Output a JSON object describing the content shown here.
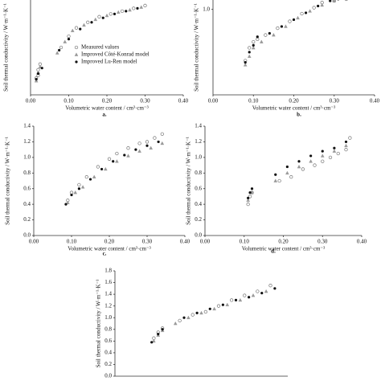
{
  "chart_data": [
    {
      "type": "scatter",
      "caption": "a.",
      "x_label": "Volumetric water content / cm³·cm⁻³",
      "y_label": "Soil thermal conductivity / W·m⁻¹·K⁻¹",
      "xlim": [
        0,
        0.4
      ],
      "xticks": [
        {
          "value": 0,
          "label": "0.00"
        },
        {
          "value": 0.1,
          "label": "0.10"
        },
        {
          "value": 0.2,
          "label": "0.20"
        },
        {
          "value": 0.3,
          "label": "0.30"
        },
        {
          "value": 0.4,
          "label": "0.40"
        }
      ],
      "ylim": [
        0,
        1.7
      ],
      "legend": "center",
      "series": [
        {
          "name": "Measured values",
          "color": "#777777",
          "marker": "open-circle",
          "x": [
            0.015,
            0.02,
            0.025,
            0.02,
            0.08,
            0.1,
            0.12,
            0.15,
            0.18,
            0.21,
            0.24,
            0.27,
            0.3
          ],
          "values": [
            0.3,
            0.45,
            0.55,
            0.35,
            0.85,
            1.05,
            1.2,
            1.3,
            1.4,
            1.45,
            1.5,
            1.55,
            1.6
          ]
        },
        {
          "name": "Improved Côté-Konrad model",
          "color": "#999999",
          "marker": "triangle",
          "x": [
            0.015,
            0.02,
            0.025,
            0.07,
            0.09,
            0.11,
            0.14,
            0.17,
            0.2,
            0.23,
            0.26,
            0.29
          ],
          "values": [
            0.25,
            0.4,
            0.5,
            0.75,
            0.95,
            1.15,
            1.25,
            1.35,
            1.42,
            1.48,
            1.52,
            1.57
          ]
        },
        {
          "name": "Improved Lu-Ren model",
          "color": "#111111",
          "marker": "dot",
          "x": [
            0.015,
            0.02,
            0.03,
            0.075,
            0.1,
            0.13,
            0.16,
            0.19,
            0.22,
            0.25,
            0.28
          ],
          "values": [
            0.28,
            0.38,
            0.48,
            0.8,
            1.0,
            1.18,
            1.3,
            1.38,
            1.45,
            1.5,
            1.55
          ]
        }
      ]
    },
    {
      "type": "scatter",
      "caption": "b.",
      "x_label": "Volumetric water content / cm³·cm⁻³",
      "y_label": "Soil thermal conductivity / W·m⁻¹·K⁻¹",
      "xlim": [
        0,
        0.4
      ],
      "xticks": [
        {
          "value": 0,
          "label": "0.00"
        },
        {
          "value": 0.1,
          "label": "0.10"
        },
        {
          "value": 0.2,
          "label": "0.20"
        },
        {
          "value": 0.3,
          "label": "0.30"
        },
        {
          "value": 0.4,
          "label": "0.40"
        }
      ],
      "ylim": [
        0,
        1.11
      ],
      "yticks": [
        {
          "value": 1,
          "label": "1.0"
        }
      ],
      "series": [
        {
          "name": "Measured values",
          "color": "#777777",
          "marker": "open-circle",
          "x": [
            0.08,
            0.09,
            0.1,
            0.11,
            0.13,
            0.16,
            0.19,
            0.22,
            0.25,
            0.27,
            0.3,
            0.33,
            0.35
          ],
          "values": [
            0.4,
            0.55,
            0.62,
            0.65,
            0.7,
            0.78,
            0.86,
            0.95,
            1.02,
            1.08,
            1.1,
            1.12,
            1.15
          ]
        },
        {
          "name": "Improved Côté-Konrad model",
          "color": "#999999",
          "marker": "triangle",
          "x": [
            0.08,
            0.09,
            0.1,
            0.12,
            0.15,
            0.18,
            0.21,
            0.24,
            0.27,
            0.3
          ],
          "values": [
            0.35,
            0.45,
            0.55,
            0.62,
            0.7,
            0.8,
            0.9,
            0.98,
            1.05,
            1.1
          ]
        },
        {
          "name": "Improved Lu-Ren model",
          "color": "#111111",
          "marker": "dot",
          "x": [
            0.08,
            0.09,
            0.1,
            0.11,
            0.14,
            0.17,
            0.2,
            0.23,
            0.26,
            0.29,
            0.31
          ],
          "values": [
            0.38,
            0.5,
            0.58,
            0.68,
            0.72,
            0.8,
            0.88,
            0.96,
            1.04,
            1.1,
            1.12
          ]
        }
      ]
    },
    {
      "type": "scatter",
      "caption": "c.",
      "x_label": "Volumetric water content / cm³·cm⁻³",
      "y_label": "Soil thermal conductivity / W·m⁻¹·K⁻¹",
      "xlim": [
        0,
        0.4
      ],
      "xticks": [
        {
          "value": 0,
          "label": "0.00"
        },
        {
          "value": 0.1,
          "label": "0.10"
        },
        {
          "value": 0.2,
          "label": "0.20"
        },
        {
          "value": 0.3,
          "label": "0.30"
        },
        {
          "value": 0.4,
          "label": "0.40"
        }
      ],
      "ylim": [
        0,
        1.4
      ],
      "yticks": [
        {
          "value": 0,
          "label": "0.0"
        },
        0.2,
        0.4,
        0.6,
        0.8,
        {
          "value": 1,
          "label": "1.0"
        },
        1.2,
        1.4
      ],
      "series": [
        {
          "name": "Measured values",
          "color": "#777777",
          "marker": "open-circle",
          "x": [
            0.09,
            0.1,
            0.12,
            0.14,
            0.17,
            0.2,
            0.22,
            0.25,
            0.28,
            0.3,
            0.32,
            0.34
          ],
          "values": [
            0.45,
            0.55,
            0.65,
            0.75,
            0.88,
            0.98,
            1.05,
            1.12,
            1.18,
            1.2,
            1.25,
            1.3
          ]
        },
        {
          "name": "Improved Côté-Konrad model",
          "color": "#999999",
          "marker": "triangle",
          "x": [
            0.09,
            0.11,
            0.13,
            0.16,
            0.19,
            0.22,
            0.25,
            0.28,
            0.31,
            0.34
          ],
          "values": [
            0.42,
            0.55,
            0.62,
            0.75,
            0.85,
            0.95,
            1.02,
            1.08,
            1.12,
            1.18
          ]
        },
        {
          "name": "Improved Lu-Ren model",
          "color": "#111111",
          "marker": "dot",
          "x": [
            0.085,
            0.1,
            0.12,
            0.15,
            0.18,
            0.21,
            0.24,
            0.27,
            0.3,
            0.33
          ],
          "values": [
            0.4,
            0.52,
            0.6,
            0.72,
            0.85,
            0.95,
            1.03,
            1.1,
            1.15,
            1.2
          ]
        }
      ]
    },
    {
      "type": "scatter",
      "caption": "d.",
      "x_label": "Volumetric water content / cm³·cm⁻³",
      "y_label": "Soil thermal conductivity / W·m⁻¹·K⁻¹",
      "xlim": [
        0,
        0.4
      ],
      "xticks": [
        {
          "value": 0,
          "label": "0.00"
        },
        {
          "value": 0.1,
          "label": "0.10"
        },
        {
          "value": 0.2,
          "label": "0.20"
        },
        {
          "value": 0.3,
          "label": "0.30"
        },
        {
          "value": 0.4,
          "label": "0.40"
        }
      ],
      "ylim": [
        0,
        1.4
      ],
      "yticks": [
        {
          "value": 0,
          "label": "0.0"
        },
        0.2,
        0.4,
        0.6,
        0.8,
        {
          "value": 1,
          "label": "1.0"
        },
        1.2,
        1.4
      ],
      "series": [
        {
          "name": "Measured values",
          "color": "#777777",
          "marker": "open-circle",
          "x": [
            0.11,
            0.115,
            0.12,
            0.19,
            0.22,
            0.25,
            0.28,
            0.3,
            0.32,
            0.34,
            0.36,
            0.37
          ],
          "values": [
            0.4,
            0.5,
            0.55,
            0.7,
            0.75,
            0.85,
            0.9,
            0.95,
            1.0,
            1.05,
            1.1,
            1.25
          ]
        },
        {
          "name": "Improved Côté-Konrad model",
          "color": "#999999",
          "marker": "triangle",
          "x": [
            0.11,
            0.12,
            0.18,
            0.21,
            0.24,
            0.27,
            0.3,
            0.33,
            0.36
          ],
          "values": [
            0.45,
            0.55,
            0.7,
            0.8,
            0.88,
            0.95,
            1.02,
            1.08,
            1.15
          ]
        },
        {
          "name": "Improved Lu-Ren model",
          "color": "#111111",
          "marker": "dot",
          "x": [
            0.11,
            0.115,
            0.12,
            0.18,
            0.21,
            0.24,
            0.27,
            0.3,
            0.33,
            0.36
          ],
          "values": [
            0.48,
            0.55,
            0.6,
            0.78,
            0.88,
            0.95,
            1.02,
            1.08,
            1.12,
            1.2
          ]
        }
      ]
    },
    {
      "type": "scatter",
      "y_label": "Soil thermal conductivity / W·m⁻¹·K⁻¹",
      "xlim": [
        0,
        0.4
      ],
      "ylim": [
        0,
        1.8
      ],
      "yticks": [
        {
          "value": 0,
          "label": "0.0"
        },
        0.2,
        0.4,
        0.6,
        0.8,
        {
          "value": 1,
          "label": "1.0"
        },
        1.2,
        1.4,
        1.6,
        1.8
      ],
      "series": [
        {
          "name": "Measured values",
          "color": "#777777",
          "marker": "open-circle",
          "x": [
            0.09,
            0.1,
            0.11,
            0.15,
            0.18,
            0.21,
            0.24,
            0.27,
            0.3,
            0.33,
            0.36
          ],
          "values": [
            0.65,
            0.75,
            0.82,
            0.95,
            1.05,
            1.1,
            1.2,
            1.3,
            1.38,
            1.45,
            1.55
          ]
        },
        {
          "name": "Improved Côté-Konrad model",
          "color": "#999999",
          "marker": "triangle",
          "x": [
            0.09,
            0.1,
            0.11,
            0.14,
            0.17,
            0.2,
            0.23,
            0.26,
            0.29,
            0.32,
            0.35
          ],
          "values": [
            0.6,
            0.7,
            0.78,
            0.9,
            1.0,
            1.08,
            1.15,
            1.22,
            1.3,
            1.38,
            1.45
          ]
        },
        {
          "name": "Improved Lu-Ren model",
          "color": "#111111",
          "marker": "dot",
          "x": [
            0.085,
            0.1,
            0.11,
            0.16,
            0.19,
            0.22,
            0.25,
            0.28,
            0.31,
            0.34,
            0.37
          ],
          "values": [
            0.58,
            0.72,
            0.8,
            1.0,
            1.08,
            1.15,
            1.22,
            1.3,
            1.35,
            1.42,
            1.5
          ]
        }
      ]
    }
  ]
}
